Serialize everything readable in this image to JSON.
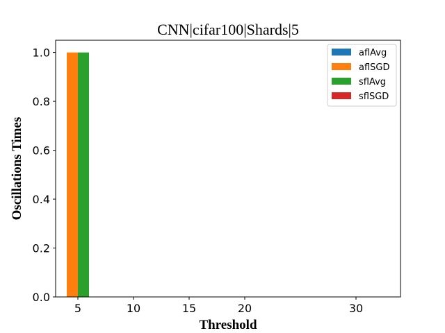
{
  "chart_data": {
    "type": "bar",
    "title": "CNN|cifar100|Shards|5",
    "xlabel": "Threshold",
    "ylabel": "Oscillations Times",
    "xlim": [
      3,
      34
    ],
    "ylim": [
      0,
      1.05
    ],
    "xticks": [
      5,
      10,
      15,
      20,
      30
    ],
    "yticks": [
      0.0,
      0.2,
      0.4,
      0.6,
      0.8,
      1.0
    ],
    "ytick_labels": [
      "0.0",
      "0.2",
      "0.4",
      "0.6",
      "0.8",
      "1.0"
    ],
    "bar_width": 1,
    "legend_position": "top-right",
    "grid": false,
    "series": [
      {
        "name": "aflAvg",
        "color": "#1f77b4",
        "offset": -1.5,
        "x": [
          5,
          10,
          15,
          20,
          30
        ],
        "values": [
          0,
          0,
          0,
          0,
          0
        ]
      },
      {
        "name": "aflSGD",
        "color": "#ff7f0e",
        "offset": -0.5,
        "x": [
          5,
          10,
          15,
          20,
          30
        ],
        "values": [
          1.0,
          0,
          0,
          0,
          0
        ]
      },
      {
        "name": "sflAvg",
        "color": "#2ca02c",
        "offset": 0.5,
        "x": [
          5,
          10,
          15,
          20,
          30
        ],
        "values": [
          1.0,
          0,
          0,
          0,
          0
        ]
      },
      {
        "name": "sflSGD",
        "color": "#d62728",
        "offset": 1.5,
        "x": [
          5,
          10,
          15,
          20,
          30
        ],
        "values": [
          0,
          0,
          0,
          0,
          0
        ]
      }
    ]
  }
}
